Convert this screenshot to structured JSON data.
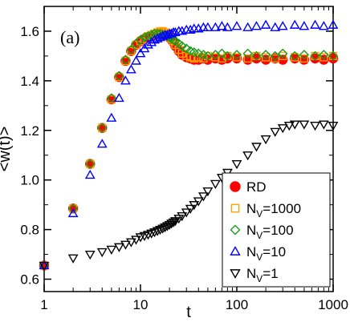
{
  "chart_data": {
    "type": "scatter",
    "panel_label": "(a)",
    "xlabel": "t",
    "ylabel": "<w(t)>",
    "xscale": "log",
    "xlim": [
      1,
      1000
    ],
    "ylim": [
      0.55,
      1.7
    ],
    "x_ticks": [
      1,
      10,
      100,
      1000
    ],
    "x_tick_labels": [
      "1",
      "10",
      "100",
      "1000"
    ],
    "y_ticks": [
      0.6,
      0.8,
      1.0,
      1.2,
      1.4,
      1.6
    ],
    "y_tick_labels": [
      "0.6",
      "0.8",
      "1.0",
      "1.2",
      "1.4",
      "1.6"
    ],
    "grid": false,
    "legend_position": "bottom-right",
    "series": [
      {
        "name": "RD",
        "legend_main": "RD",
        "legend_sub": "",
        "marker": "circle-filled",
        "color": "#ff0000",
        "x": [
          1,
          2,
          3,
          4,
          5,
          6,
          7,
          8,
          9,
          10,
          11,
          12,
          13,
          14,
          15,
          16,
          17,
          18,
          19,
          20,
          21,
          22,
          23,
          25,
          27,
          30,
          33,
          36,
          40,
          45,
          50,
          60,
          70,
          80,
          100,
          130,
          160,
          200,
          250,
          300,
          400,
          500,
          650,
          800,
          1000
        ],
        "y": [
          0.655,
          0.885,
          1.065,
          1.21,
          1.325,
          1.415,
          1.48,
          1.52,
          1.545,
          1.56,
          1.57,
          1.575,
          1.58,
          1.585,
          1.59,
          1.595,
          1.595,
          1.59,
          1.585,
          1.575,
          1.565,
          1.555,
          1.54,
          1.52,
          1.505,
          1.495,
          1.49,
          1.485,
          1.485,
          1.49,
          1.485,
          1.49,
          1.485,
          1.49,
          1.49,
          1.485,
          1.49,
          1.485,
          1.49,
          1.485,
          1.49,
          1.485,
          1.49,
          1.485,
          1.49
        ]
      },
      {
        "name": "N_V=1000",
        "legend_main": "N",
        "legend_sub": "V",
        "legend_suffix": "=1000",
        "marker": "square-open",
        "color": "#ffa500",
        "x": [
          1,
          2,
          3,
          4,
          5,
          6,
          7,
          8,
          9,
          10,
          11,
          12,
          13,
          14,
          15,
          16,
          17,
          18,
          19,
          20,
          21,
          22,
          23,
          25,
          27,
          30,
          33,
          36,
          40,
          45,
          50,
          60,
          70,
          80,
          100,
          130,
          160,
          200,
          250,
          300,
          400,
          500,
          650,
          800,
          1000
        ],
        "y": [
          0.655,
          0.885,
          1.065,
          1.21,
          1.325,
          1.415,
          1.48,
          1.52,
          1.545,
          1.56,
          1.57,
          1.58,
          1.585,
          1.59,
          1.595,
          1.6,
          1.6,
          1.595,
          1.59,
          1.58,
          1.57,
          1.56,
          1.545,
          1.525,
          1.51,
          1.5,
          1.495,
          1.49,
          1.495,
          1.49,
          1.5,
          1.495,
          1.49,
          1.5,
          1.495,
          1.49,
          1.5,
          1.495,
          1.49,
          1.5,
          1.495,
          1.49,
          1.5,
          1.495,
          1.5
        ]
      },
      {
        "name": "N_V=100",
        "legend_main": "N",
        "legend_sub": "V",
        "legend_suffix": "=100",
        "marker": "diamond-open",
        "color": "#1a9a1a",
        "x": [
          1,
          2,
          3,
          4,
          5,
          6,
          7,
          8,
          9,
          10,
          11,
          12,
          13,
          14,
          15,
          16,
          17,
          18,
          19,
          20,
          21,
          22,
          23,
          25,
          27,
          30,
          33,
          36,
          40,
          45,
          50,
          60,
          70,
          80,
          100,
          130,
          160,
          200,
          250,
          300,
          400,
          500,
          650,
          800,
          1000
        ],
        "y": [
          0.655,
          0.885,
          1.065,
          1.21,
          1.33,
          1.42,
          1.485,
          1.525,
          1.55,
          1.565,
          1.575,
          1.58,
          1.585,
          1.59,
          1.59,
          1.59,
          1.585,
          1.585,
          1.58,
          1.575,
          1.57,
          1.565,
          1.56,
          1.55,
          1.54,
          1.53,
          1.52,
          1.515,
          1.51,
          1.505,
          1.5,
          1.505,
          1.51,
          1.5,
          1.505,
          1.51,
          1.5,
          1.505,
          1.5,
          1.51,
          1.5,
          1.505,
          1.5,
          1.505,
          1.5
        ]
      },
      {
        "name": "N_V=10",
        "legend_main": "N",
        "legend_sub": "V",
        "legend_suffix": "=10",
        "marker": "triangle-up-open",
        "color": "#0000ff",
        "x": [
          1,
          2,
          3,
          4,
          5,
          6,
          7,
          8,
          9,
          10,
          11,
          12,
          13,
          14,
          15,
          16,
          17,
          18,
          19,
          20,
          21,
          22,
          23,
          25,
          27,
          30,
          33,
          36,
          40,
          45,
          50,
          60,
          70,
          80,
          100,
          130,
          160,
          200,
          250,
          300,
          400,
          500,
          650,
          800,
          1000
        ],
        "y": [
          0.655,
          0.865,
          1.02,
          1.145,
          1.25,
          1.33,
          1.4,
          1.445,
          1.48,
          1.51,
          1.53,
          1.545,
          1.555,
          1.565,
          1.57,
          1.575,
          1.58,
          1.585,
          1.585,
          1.59,
          1.59,
          1.595,
          1.595,
          1.6,
          1.6,
          1.605,
          1.605,
          1.61,
          1.61,
          1.615,
          1.615,
          1.615,
          1.62,
          1.615,
          1.62,
          1.615,
          1.62,
          1.625,
          1.615,
          1.62,
          1.625,
          1.62,
          1.625,
          1.62,
          1.625
        ]
      },
      {
        "name": "N_V=1",
        "legend_main": "N",
        "legend_sub": "V",
        "legend_suffix": "=1",
        "marker": "triangle-down-open",
        "color": "#000000",
        "x": [
          1,
          2,
          3,
          4,
          5,
          6,
          7,
          8,
          9,
          10,
          11,
          12,
          13,
          14,
          15,
          16,
          17,
          18,
          19,
          20,
          21,
          22,
          23,
          25,
          27,
          30,
          33,
          36,
          40,
          45,
          50,
          60,
          70,
          80,
          100,
          130,
          160,
          200,
          250,
          300,
          350,
          400,
          500,
          650,
          800,
          1000
        ],
        "y": [
          0.655,
          0.685,
          0.7,
          0.71,
          0.72,
          0.73,
          0.74,
          0.75,
          0.76,
          0.77,
          0.775,
          0.78,
          0.785,
          0.79,
          0.795,
          0.8,
          0.805,
          0.81,
          0.815,
          0.82,
          0.825,
          0.83,
          0.835,
          0.845,
          0.855,
          0.87,
          0.885,
          0.9,
          0.915,
          0.935,
          0.955,
          0.985,
          1.01,
          1.03,
          1.065,
          1.1,
          1.135,
          1.165,
          1.195,
          1.21,
          1.22,
          1.225,
          1.225,
          1.22,
          1.225,
          1.22
        ]
      }
    ]
  }
}
